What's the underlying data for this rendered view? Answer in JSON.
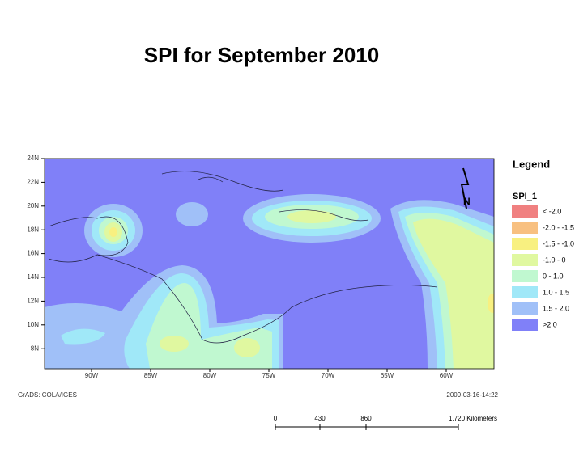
{
  "title": "SPI for September 2010",
  "map": {
    "lat_labels": [
      "24N",
      "22N",
      "20N",
      "18N",
      "16N",
      "14N",
      "12N",
      "10N",
      "8N"
    ],
    "lon_labels": [
      "90W",
      "85W",
      "80W",
      "75W",
      "70W",
      "65W",
      "60W"
    ]
  },
  "north_label": "N",
  "legend": {
    "title": "Legend",
    "field": "SPI_1",
    "items": [
      {
        "label": "< -2.0",
        "color": "#f08080"
      },
      {
        "label": "-2.0 - -1.5",
        "color": "#f8c080"
      },
      {
        "label": "-1.5 - -1.0",
        "color": "#f8f080"
      },
      {
        "label": "-1.0 - 0",
        "color": "#e0f8a0"
      },
      {
        "label": "0 - 1.0",
        "color": "#c0f8d0"
      },
      {
        "label": "1.0 - 1.5",
        "color": "#a0e8f8"
      },
      {
        "label": "1.5 - 2.0",
        "color": "#a0c0f8"
      },
      {
        "label": ">2.0",
        "color": "#8080f8"
      }
    ]
  },
  "credit": "GrADS: COLA/IGES",
  "timestamp": "2009-03-16-14:22",
  "scale_bar": {
    "labels": [
      "0",
      "430",
      "860",
      "1,720 Kilometers"
    ]
  }
}
